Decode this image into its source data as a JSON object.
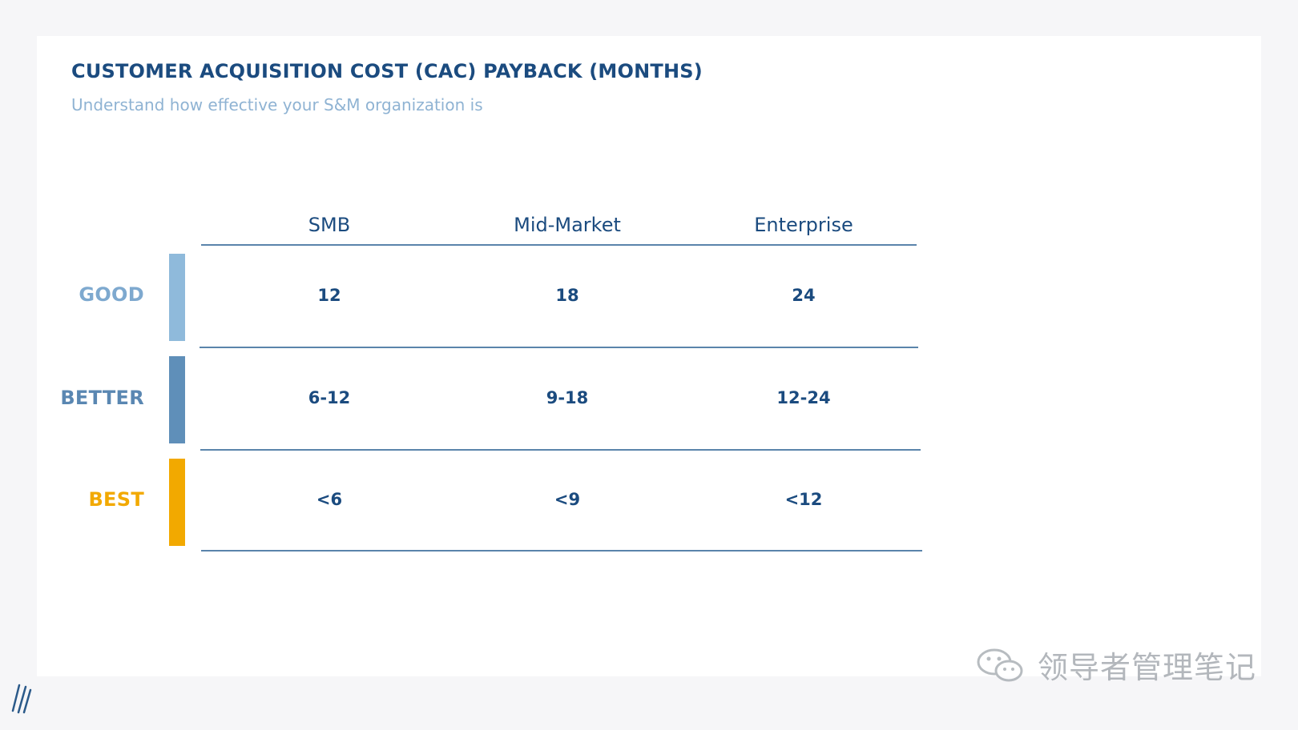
{
  "slide": {
    "title": "CUSTOMER ACQUISITION COST (CAC) PAYBACK (MONTHS)",
    "subtitle": "Understand how effective your S&M organization is"
  },
  "table": {
    "columns": [
      "SMB",
      "Mid-Market",
      "Enterprise"
    ],
    "rows": [
      {
        "label": "GOOD",
        "color": "#8fbadb",
        "values": [
          "12",
          "18",
          "24"
        ]
      },
      {
        "label": "BETTER",
        "color": "#5f8fb9",
        "values": [
          "6-12",
          "9-18",
          "12-24"
        ]
      },
      {
        "label": "BEST",
        "color": "#f2a900",
        "values": [
          "<6",
          "<9",
          "<12"
        ]
      }
    ]
  },
  "colors": {
    "title": "#1b4b7f",
    "subtitle": "#8fb3d3",
    "rule": "#3d6e9c",
    "good_label": "#7ea9cf",
    "better_label": "#5a87b2",
    "best_label": "#f2a900"
  },
  "watermark": {
    "text": "领导者管理笔记",
    "icon": "wechat-icon"
  },
  "brand": {
    "icon": "brand-slash-icon"
  }
}
